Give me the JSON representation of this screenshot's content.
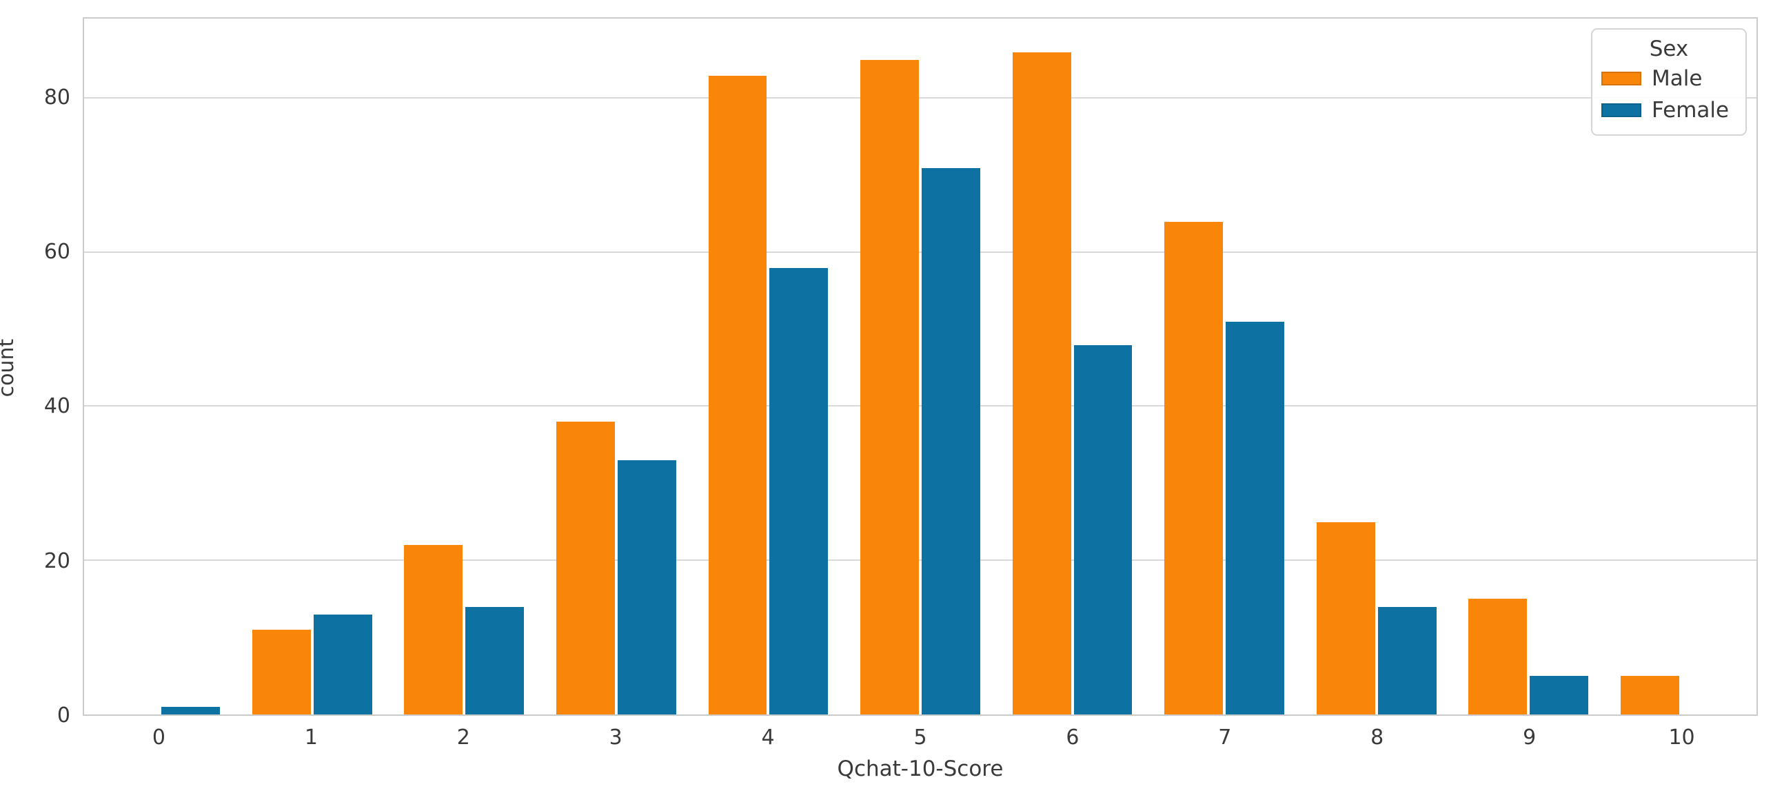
{
  "figure": {
    "ylabel": "count",
    "xlabel": "Qchat-10-Score",
    "background": "#ffffff"
  },
  "legend": {
    "title": "Sex",
    "position": "upper right",
    "items": [
      {
        "label": "Male",
        "color": "#f9850a"
      },
      {
        "label": "Female",
        "color": "#0d72a1"
      }
    ]
  },
  "axes": {
    "y_ticks": [
      0,
      20,
      40,
      60,
      80
    ],
    "y_gridlines": [
      20,
      40,
      60,
      80
    ],
    "x_ticks": [
      "0",
      "1",
      "2",
      "3",
      "4",
      "5",
      "6",
      "7",
      "8",
      "9",
      "10"
    ],
    "grid_color": "#d9d9d9",
    "spine_color": "#cbcbcb",
    "text_color": "#3a3a3a"
  },
  "chart_data": {
    "type": "bar",
    "title": "",
    "categories": [
      "0",
      "1",
      "2",
      "3",
      "4",
      "5",
      "6",
      "7",
      "8",
      "9",
      "10"
    ],
    "series": [
      {
        "name": "Male",
        "color": "#f9850a",
        "values": [
          0,
          11,
          22,
          38,
          83,
          85,
          86,
          64,
          25,
          15,
          5
        ]
      },
      {
        "name": "Female",
        "color": "#0d72a1",
        "values": [
          1,
          13,
          14,
          33,
          58,
          71,
          48,
          51,
          14,
          5,
          0
        ]
      }
    ],
    "xlabel": "Qchat-10-Score",
    "ylabel": "count",
    "ylim": [
      0,
      90.4
    ],
    "grid": true,
    "legend_title": "Sex",
    "legend_position": "upper right"
  }
}
